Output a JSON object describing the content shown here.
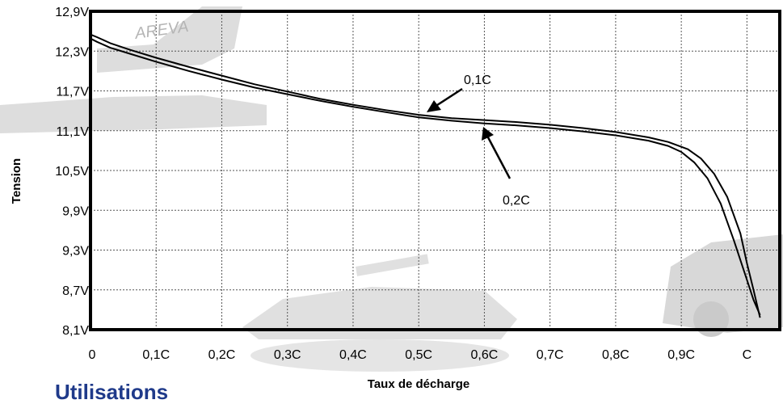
{
  "chart_data": {
    "type": "line",
    "title": "",
    "xlabel": "Taux de décharge",
    "ylabel": "Tension",
    "x_tick_labels": [
      "0",
      "0,1C",
      "0,2C",
      "0,3C",
      "0,4C",
      "0,5C",
      "0,6C",
      "0,7C",
      "0,8C",
      "0,9C",
      "C"
    ],
    "y_tick_labels": [
      "12,9V",
      "12,3V",
      "11,7V",
      "11,1V",
      "10,5V",
      "9,9V",
      "9,3V",
      "8,7V",
      "8,1V"
    ],
    "xlim": [
      0,
      1.05
    ],
    "ylim": [
      8.1,
      12.9
    ],
    "grid": true,
    "series": [
      {
        "name": "0,1C",
        "x": [
          0,
          0.01,
          0.03,
          0.06,
          0.1,
          0.15,
          0.2,
          0.25,
          0.3,
          0.35,
          0.4,
          0.45,
          0.5,
          0.55,
          0.6,
          0.65,
          0.7,
          0.75,
          0.8,
          0.85,
          0.88,
          0.91,
          0.93,
          0.95,
          0.97,
          0.99,
          1.0,
          1.01,
          1.02
        ],
        "y": [
          12.55,
          12.51,
          12.42,
          12.32,
          12.2,
          12.06,
          11.93,
          11.8,
          11.69,
          11.58,
          11.49,
          11.41,
          11.34,
          11.29,
          11.26,
          11.23,
          11.19,
          11.14,
          11.08,
          11.0,
          10.93,
          10.82,
          10.68,
          10.45,
          10.1,
          9.55,
          9.1,
          8.7,
          8.28
        ]
      },
      {
        "name": "0,2C",
        "x": [
          0,
          0.01,
          0.03,
          0.06,
          0.1,
          0.15,
          0.2,
          0.25,
          0.3,
          0.35,
          0.4,
          0.45,
          0.5,
          0.55,
          0.6,
          0.65,
          0.7,
          0.75,
          0.8,
          0.85,
          0.88,
          0.9,
          0.92,
          0.94,
          0.96,
          0.98,
          1.0,
          1.01,
          1.02
        ],
        "y": [
          12.49,
          12.44,
          12.35,
          12.26,
          12.14,
          12.0,
          11.87,
          11.75,
          11.65,
          11.55,
          11.46,
          11.38,
          11.3,
          11.25,
          11.21,
          11.18,
          11.14,
          11.09,
          11.03,
          10.95,
          10.87,
          10.78,
          10.62,
          10.38,
          10.0,
          9.45,
          8.85,
          8.55,
          8.32
        ]
      }
    ],
    "annotations": [
      "0,1C",
      "0,2C"
    ]
  },
  "footer": {
    "heading": "Utilisations"
  },
  "watermark": {
    "text": "AREVA"
  }
}
